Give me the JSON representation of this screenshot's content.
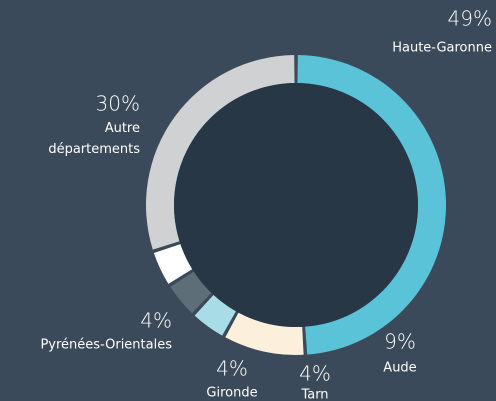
{
  "chart_data": {
    "type": "donut",
    "categories": [
      "Haute-Garonne",
      "Aude",
      "Tarn",
      "Gironde",
      "Pyrénées-Orientales",
      "Autre départements"
    ],
    "values": [
      49,
      9,
      4,
      4,
      4,
      30
    ],
    "value_labels": [
      "49%",
      "9%",
      "4%",
      "4%",
      "4%",
      "30%"
    ],
    "colors": [
      "#5bc3d8",
      "#fcefdc",
      "#a8dde8",
      "#5e6e78",
      "#ffffff",
      "#d0d1d3"
    ]
  }
}
